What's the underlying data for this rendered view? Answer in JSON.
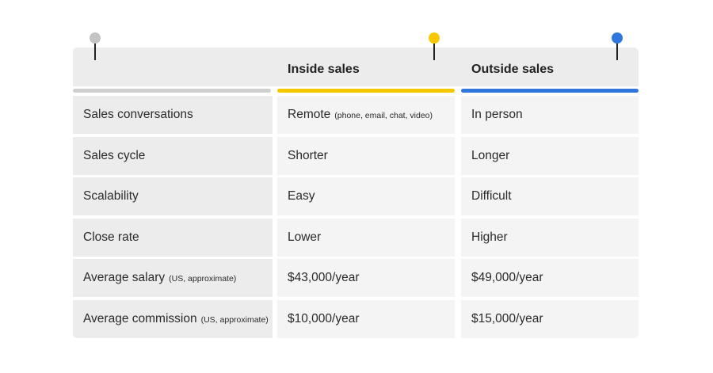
{
  "table": {
    "columns": [
      "Inside sales",
      "Outside sales"
    ],
    "rows": [
      {
        "label": {
          "text": "Sales conversations"
        },
        "cells": [
          {
            "text": "Remote",
            "note": "(phone, email, chat, video)"
          },
          {
            "text": "In person"
          }
        ]
      },
      {
        "label": {
          "text": "Sales cycle"
        },
        "cells": [
          {
            "text": "Shorter"
          },
          {
            "text": "Longer"
          }
        ]
      },
      {
        "label": {
          "text": "Scalability"
        },
        "cells": [
          {
            "text": "Easy"
          },
          {
            "text": "Difficult"
          }
        ]
      },
      {
        "label": {
          "text": "Close rate"
        },
        "cells": [
          {
            "text": "Lower"
          },
          {
            "text": "Higher"
          }
        ]
      },
      {
        "label": {
          "text": "Average salary",
          "note": "(US, approximate)"
        },
        "cells": [
          {
            "text": "$43,000/year"
          },
          {
            "text": "$49,000/year"
          }
        ]
      },
      {
        "label": {
          "text": "Average commission",
          "note": "(US, approximate)"
        },
        "cells": [
          {
            "text": "$10,000/year"
          },
          {
            "text": "$15,000/year"
          }
        ]
      }
    ]
  }
}
